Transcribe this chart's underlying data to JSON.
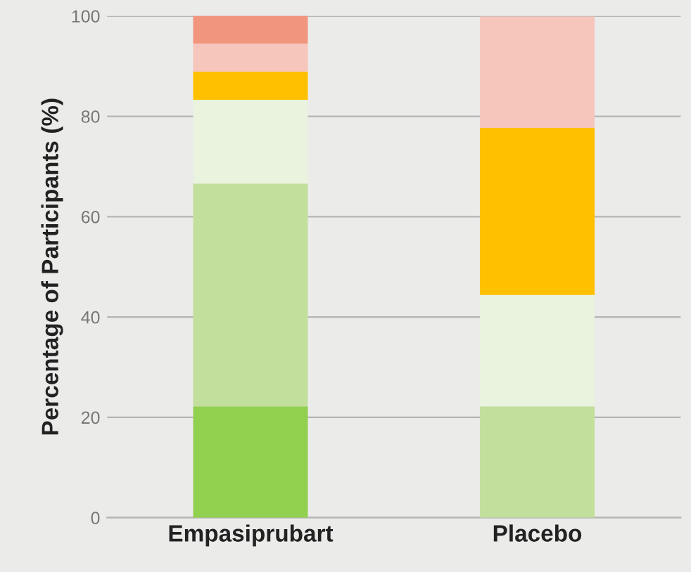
{
  "chart_data": {
    "type": "bar",
    "stacked": true,
    "ylabel": "Percentage of Participants (%)",
    "categories": [
      "Empasiprubart",
      "Placebo"
    ],
    "series": [
      {
        "color": "#92d050",
        "values": [
          22.2,
          null
        ]
      },
      {
        "color": "#c3df9c",
        "values": [
          44.4,
          22.2
        ]
      },
      {
        "color": "#e9f3dd",
        "values": [
          16.7,
          22.2
        ]
      },
      {
        "color": "#ffc000",
        "values": [
          5.6,
          33.3
        ]
      },
      {
        "color": "#f6c6bd",
        "values": [
          5.6,
          22.2
        ]
      },
      {
        "color": "#f2957e",
        "values": [
          5.6,
          null
        ]
      }
    ],
    "ylim": [
      0,
      100
    ],
    "yticks": [
      0,
      20,
      40,
      60,
      80,
      100
    ],
    "grid": "y",
    "legend": false
  }
}
